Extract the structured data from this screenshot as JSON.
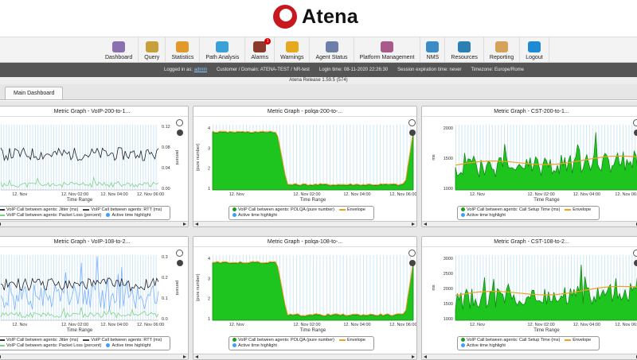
{
  "app": {
    "name": "Atena"
  },
  "menu": [
    {
      "label": "Dashboard",
      "icon": "dashboard-icon",
      "color": "#8b6fb0"
    },
    {
      "label": "Query",
      "icon": "query-icon",
      "color": "#c7a03b"
    },
    {
      "label": "Statistics",
      "icon": "statistics-icon",
      "color": "#e19a2a"
    },
    {
      "label": "Path Analysis",
      "icon": "path-analysis-icon",
      "color": "#3aa0d8"
    },
    {
      "label": "Alarms",
      "icon": "alarms-icon",
      "color": "#8a3a2a",
      "badge": "1"
    },
    {
      "label": "Warnings",
      "icon": "warnings-icon",
      "color": "#e6a91d"
    },
    {
      "label": "Agent Status",
      "icon": "agent-status-icon",
      "color": "#6b7fa8"
    },
    {
      "label": "Platform Management",
      "icon": "platform-management-icon",
      "color": "#a85a8a"
    },
    {
      "label": "NMS",
      "icon": "nms-icon",
      "color": "#3b8bc9"
    },
    {
      "label": "Resources",
      "icon": "resources-icon",
      "color": "#2a7fb3"
    },
    {
      "label": "Reporting",
      "icon": "reporting-icon",
      "color": "#d6a25a"
    },
    {
      "label": "Logout",
      "icon": "logout-icon",
      "color": "#1d8ad6"
    }
  ],
  "info": {
    "logged_in_label": "Logged in as:",
    "user": "admin",
    "customer": "Customer / Domain: ATENA-TEST / NR-test",
    "login_time": "Login time: 08-11-2020 22:26:30",
    "session": "Session expiration time: never",
    "timezone": "Timezone: Europe/Rome"
  },
  "release": "Atena Release 1.59.5 (574)",
  "tabs": [
    {
      "label": "Main Dashboard"
    }
  ],
  "panels": [
    {
      "title": "Metric Graph - VoIP-200-to-1...",
      "x_title": "Time Range",
      "x_ticks": [
        "12. Nov",
        "12. Nov 02:00",
        "12. Nov 04:00",
        "12. Nov 06:00"
      ],
      "y_ticks_right": [
        "0.12",
        "0.08",
        "0.04",
        "0.00"
      ],
      "y_label_right": "percent",
      "legend": [
        {
          "label": "VoIP Call between agents: Jitter (ms)",
          "type": "line",
          "color": "#333"
        },
        {
          "label": "VoIP Call between agents: RTT (ms)",
          "type": "line",
          "color": "#444"
        },
        {
          "label": "VoIP Call between agents: Packet Loss (percent)",
          "type": "line",
          "color": "#7fd37f"
        },
        {
          "label": "Active time highlight",
          "type": "dot",
          "color": "#3aa0ff"
        }
      ]
    },
    {
      "title": "Metric Graph - polqa-200-to-...",
      "x_title": "Time Range",
      "x_ticks": [
        "12. Nov",
        "12. Nov 02:00",
        "12. Nov 04:00",
        "12. Nov 06:00"
      ],
      "y_ticks": [
        "4",
        "3",
        "2",
        "1"
      ],
      "y_label": "(pure number)",
      "legend": [
        {
          "label": "VoIP Call between agents: POLQA (pure number)",
          "type": "dot",
          "color": "#1a9c1a"
        },
        {
          "label": "Envelope",
          "type": "line",
          "color": "#f0a020"
        },
        {
          "label": "Active time highlight",
          "type": "dot",
          "color": "#3aa0ff"
        }
      ]
    },
    {
      "title": "Metric Graph - CST-200-to-1...",
      "x_title": "Time Range",
      "x_ticks": [
        "12. Nov",
        "12. Nov 02:00",
        "12. Nov 04:00",
        "12. Nov 06:00"
      ],
      "y_ticks": [
        "2000",
        "1500",
        "1000"
      ],
      "y_label": "ms",
      "legend": [
        {
          "label": "VoIP Call between agents: Call Setup Time (ms)",
          "type": "dot",
          "color": "#1a9c1a"
        },
        {
          "label": "Envelope",
          "type": "line",
          "color": "#f0a020"
        },
        {
          "label": "Active time highlight",
          "type": "dot",
          "color": "#3aa0ff"
        }
      ]
    },
    {
      "title": "Metric Graph - VoIP-108-to-2...",
      "x_title": "Time Range",
      "x_ticks": [
        "12. Nov",
        "12. Nov 02:00",
        "12. Nov 04:00",
        "12. Nov 06:00"
      ],
      "y_ticks_right": [
        "0.3",
        "0.2",
        "0.1",
        "0.0"
      ],
      "y_label_right": "percent",
      "legend": [
        {
          "label": "VoIP Call between agents: Jitter (ms)",
          "type": "line",
          "color": "#333"
        },
        {
          "label": "VoIP Call between agents: RTT (ms)",
          "type": "line",
          "color": "#444"
        },
        {
          "label": "VoIP Call between agents: Packet Loss (percent)",
          "type": "line",
          "color": "#7fd37f"
        },
        {
          "label": "Active time highlight",
          "type": "dot",
          "color": "#3aa0ff"
        }
      ]
    },
    {
      "title": "Metric Graph - polqa-108-to-...",
      "x_title": "Time Range",
      "x_ticks": [
        "12. Nov",
        "12. Nov 02:00",
        "12. Nov 04:00",
        "12. Nov 06:00"
      ],
      "y_ticks": [
        "4",
        "3",
        "2",
        "1"
      ],
      "y_label": "(pure number)",
      "legend": [
        {
          "label": "VoIP Call between agents: POLQA (pure number)",
          "type": "dot",
          "color": "#1a9c1a"
        },
        {
          "label": "Envelope",
          "type": "line",
          "color": "#f0a020"
        },
        {
          "label": "Active time highlight",
          "type": "dot",
          "color": "#3aa0ff"
        }
      ]
    },
    {
      "title": "Metric Graph - CST-108-to-2...",
      "x_title": "Time Range",
      "x_ticks": [
        "12. Nov",
        "12. Nov 02:00",
        "12. Nov 04:00",
        "12. Nov 06:00"
      ],
      "y_ticks": [
        "3000",
        "2500",
        "2000",
        "1500",
        "1000"
      ],
      "y_label": "ms",
      "legend": [
        {
          "label": "VoIP Call between agents: Call Setup Time (ms)",
          "type": "dot",
          "color": "#1a9c1a"
        },
        {
          "label": "Envelope",
          "type": "line",
          "color": "#f0a020"
        },
        {
          "label": "Active time highlight",
          "type": "dot",
          "color": "#3aa0ff"
        }
      ]
    }
  ],
  "colors": {
    "area_green": "#1fc51f",
    "area_dark": "#118a11",
    "envelope": "#f0a020",
    "highlight": "#cfe8f8",
    "jitter": "#222",
    "loss": "#7fd37f",
    "rtt": "#7ab0ff"
  }
}
